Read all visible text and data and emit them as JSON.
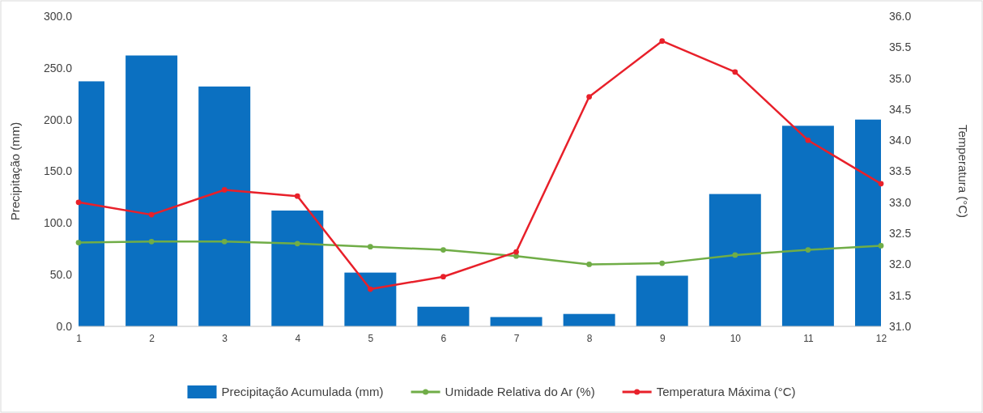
{
  "chart_data": {
    "type": "bar",
    "xlabel": null,
    "ylabel": "Precipitação (mm)",
    "y2label": "Temperatura (°C)",
    "categories": [
      "1",
      "2",
      "3",
      "4",
      "5",
      "6",
      "7",
      "8",
      "9",
      "10",
      "11",
      "12"
    ],
    "series": [
      {
        "name": "Precipitação Acumulada (mm)",
        "color": "#0b70c1",
        "values": [
          237,
          262,
          232,
          112,
          52,
          19,
          9,
          12,
          49,
          128,
          194,
          200
        ]
      },
      {
        "name": "Umidade Relativa do Ar (%)",
        "type": "line",
        "color": "#70ad47",
        "marker": "circle",
        "values": [
          81,
          82,
          82,
          80,
          77,
          74,
          68,
          60,
          61,
          69,
          74,
          78
        ]
      },
      {
        "name": "Temperatura Máxima (°C)",
        "type": "line",
        "axis": "y2",
        "color": "#e8202a",
        "marker": "circle",
        "values": [
          33.0,
          32.8,
          33.2,
          33.1,
          31.6,
          31.8,
          32.2,
          34.7,
          35.6,
          35.1,
          34.0,
          33.3
        ]
      }
    ],
    "ylim": [
      0,
      300
    ],
    "yticks": [
      {
        "value": 0,
        "label": "0.0"
      },
      {
        "value": 50,
        "label": "50.0"
      },
      {
        "value": 100,
        "label": "100.0"
      },
      {
        "value": 150,
        "label": "150.0"
      },
      {
        "value": 200,
        "label": "200.0"
      },
      {
        "value": 250,
        "label": "250.0"
      },
      {
        "value": 300,
        "label": "300.0"
      }
    ],
    "y2lim": [
      31,
      36
    ],
    "y2ticks": [
      {
        "value": 31,
        "label": "31.0"
      },
      {
        "value": 31.5,
        "label": "31.5"
      },
      {
        "value": 32,
        "label": "32.0"
      },
      {
        "value": 32.5,
        "label": "32.5"
      },
      {
        "value": 33,
        "label": "33.0"
      },
      {
        "value": 33.5,
        "label": "33.5"
      },
      {
        "value": 34,
        "label": "34.0"
      },
      {
        "value": 34.5,
        "label": "34.5"
      },
      {
        "value": 35,
        "label": "35.0"
      },
      {
        "value": 35.5,
        "label": "35.5"
      },
      {
        "value": 36,
        "label": "36.0"
      }
    ],
    "grid": false,
    "legend": "bottom",
    "line_style": "solid"
  }
}
